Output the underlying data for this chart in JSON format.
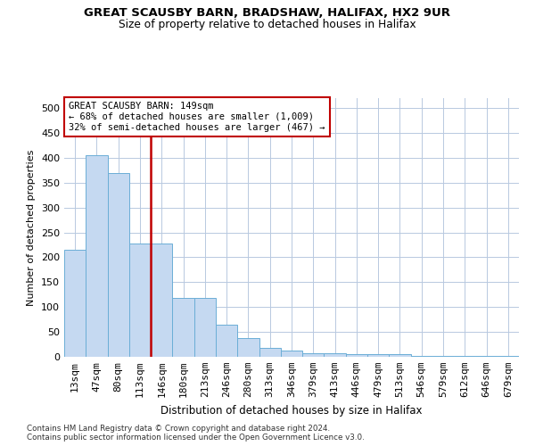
{
  "title": "GREAT SCAUSBY BARN, BRADSHAW, HALIFAX, HX2 9UR",
  "subtitle": "Size of property relative to detached houses in Halifax",
  "xlabel": "Distribution of detached houses by size in Halifax",
  "ylabel": "Number of detached properties",
  "categories": [
    "13sqm",
    "47sqm",
    "80sqm",
    "113sqm",
    "146sqm",
    "180sqm",
    "213sqm",
    "246sqm",
    "280sqm",
    "313sqm",
    "346sqm",
    "379sqm",
    "413sqm",
    "446sqm",
    "479sqm",
    "513sqm",
    "546sqm",
    "579sqm",
    "612sqm",
    "646sqm",
    "679sqm"
  ],
  "values": [
    215,
    405,
    370,
    228,
    228,
    118,
    118,
    65,
    38,
    18,
    13,
    7,
    7,
    6,
    6,
    6,
    1,
    1,
    1,
    1,
    1
  ],
  "bar_color": "#c5d9f1",
  "bar_edge_color": "#6baed6",
  "vline_color": "#c00000",
  "annotation_text": "GREAT SCAUSBY BARN: 149sqm\n← 68% of detached houses are smaller (1,009)\n32% of semi-detached houses are larger (467) →",
  "annotation_box_color": "#ffffff",
  "annotation_box_edge": "#c00000",
  "ylim": [
    0,
    520
  ],
  "yticks": [
    0,
    50,
    100,
    150,
    200,
    250,
    300,
    350,
    400,
    450,
    500
  ],
  "footer": "Contains HM Land Registry data © Crown copyright and database right 2024.\nContains public sector information licensed under the Open Government Licence v3.0.",
  "background_color": "#ffffff",
  "grid_color": "#b8c9e0"
}
